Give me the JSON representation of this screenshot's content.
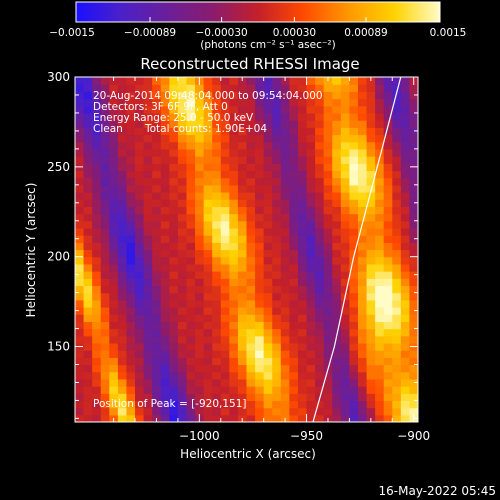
{
  "chart_data": {
    "type": "heatmap",
    "title": "Reconstructed RHESSI Image",
    "xlabel": "Heliocentric X (arcsec)",
    "ylabel": "Heliocentric Y (arcsec)",
    "xlim": [
      -1058,
      -898
    ],
    "ylim": [
      108,
      300
    ],
    "xticks": [
      {
        "value": -1000,
        "label": "−1000"
      },
      {
        "value": -950,
        "label": "−950"
      },
      {
        "value": -900,
        "label": "−900"
      }
    ],
    "yticks": [
      {
        "value": 150,
        "label": "150"
      },
      {
        "value": 200,
        "label": "200"
      },
      {
        "value": 250,
        "label": "250"
      },
      {
        "value": 300,
        "label": "300"
      }
    ],
    "colorbar": {
      "label": "(photons cm⁻² s⁻¹ asec⁻²)",
      "range": [
        -0.0015,
        0.0015
      ],
      "ticks": [
        {
          "value": -0.0015,
          "label": "−0.0015"
        },
        {
          "value": -0.00089,
          "label": "−0.00089"
        },
        {
          "value": -0.0003,
          "label": "−0.00030"
        },
        {
          "value": 0.0003,
          "label": "0.00030"
        },
        {
          "value": 0.00089,
          "label": "0.00089"
        },
        {
          "value": 0.0015,
          "label": "0.0015"
        }
      ],
      "colors": [
        "#1a10ff",
        "#4b20c8",
        "#6a1f9a",
        "#8a1c6e",
        "#c4202a",
        "#ff4a00",
        "#ff9800",
        "#ffd200",
        "#fffcc8"
      ]
    },
    "annotations": {
      "time": "20-Aug-2014 09:48:04.000 to 09:54:04.000",
      "detectors": "Detectors: 3F 6F 9F, Att 0",
      "energy": "Energy Range: 25.0 - 50.0 keV",
      "clean": "Clean",
      "counts": "Total counts: 1.90E+04",
      "peak": "Position of Peak = [-920,151]"
    },
    "peak": [
      -920,
      151
    ],
    "limb": [
      [
        -947,
        108
      ],
      [
        -937,
        150
      ],
      [
        -928,
        200
      ],
      [
        -917,
        250
      ],
      [
        -906,
        300
      ]
    ],
    "bands": [
      {
        "x0": -1058,
        "y0": 200,
        "dxdy": -0.26,
        "width": 6,
        "amp": 0.85
      },
      {
        "x0": -1032,
        "y0": 200,
        "dxdy": -0.24,
        "width": 8,
        "amp": -0.85
      },
      {
        "x0": -985,
        "y0": 200,
        "dxdy": -0.24,
        "width": 11,
        "amp": 0.95
      },
      {
        "x0": -947,
        "y0": 200,
        "dxdy": -0.22,
        "width": 7,
        "amp": -0.65
      },
      {
        "x0": -917,
        "y0": 200,
        "dxdy": -0.2,
        "width": 12,
        "amp": 1.0
      },
      {
        "x0": -890,
        "y0": 200,
        "dxdy": -0.2,
        "width": 7,
        "amp": -0.7
      }
    ]
  },
  "footer": {
    "timestamp": "16-May-2022 05:45"
  }
}
